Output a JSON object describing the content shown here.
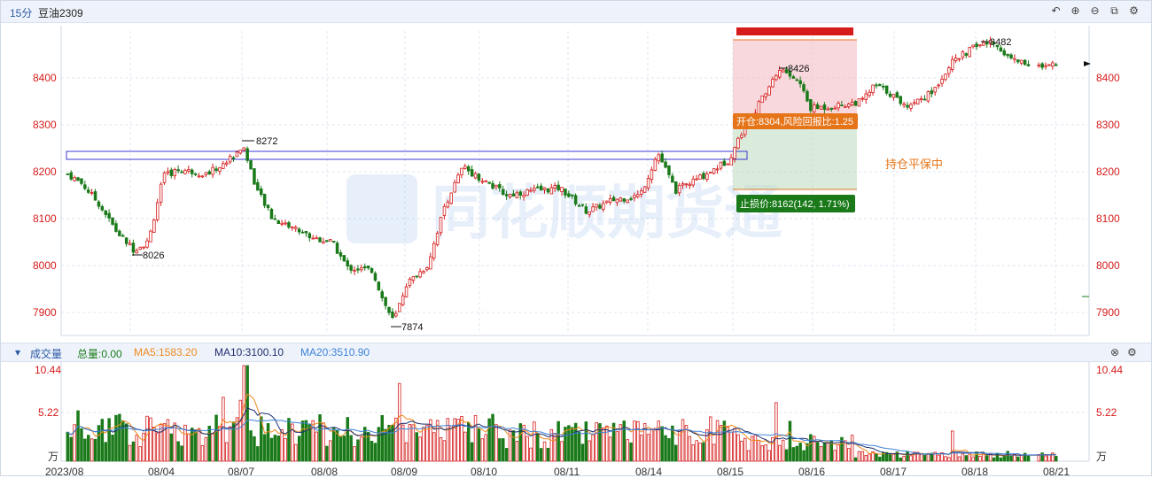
{
  "header": {
    "period": "15分",
    "symbol": "豆油2309"
  },
  "toolbar": [
    "undo-icon",
    "zoom-in-icon",
    "zoom-out-icon",
    "layout-icon",
    "settings-icon"
  ],
  "price_axis": {
    "labels": [
      "8400",
      "8300",
      "8200",
      "8100",
      "8000",
      "7900"
    ]
  },
  "annotations": {
    "high_8272": "8272",
    "low_8026": "8026",
    "low_7874": "7874",
    "high_8426": "8426",
    "high_8482": "8482",
    "entry": "开仓:8304,风险回报比:1.25",
    "stop": "止损价:8162(142, 1.71%)",
    "status": "持仓平保中"
  },
  "watermark": "同花顺期货通",
  "volume": {
    "title": "成交量",
    "total": "总量:0.00",
    "ma5": "MA5:1583.20",
    "ma10": "MA10:3100.10",
    "ma20": "MA20:3510.90",
    "axis": [
      "10.44",
      "5.22",
      "万"
    ],
    "colors": {
      "up": "#d61b1b",
      "down": "#1a7a1a",
      "ma5": "#f08a1c",
      "ma10": "#1d2f6f",
      "ma20": "#3f83d8"
    }
  },
  "dates": [
    "2023/08",
    "08/04",
    "08/07",
    "08/08",
    "08/09",
    "08/10",
    "08/11",
    "08/14",
    "08/15",
    "08/16",
    "08/17",
    "08/18",
    "08/21"
  ]
}
